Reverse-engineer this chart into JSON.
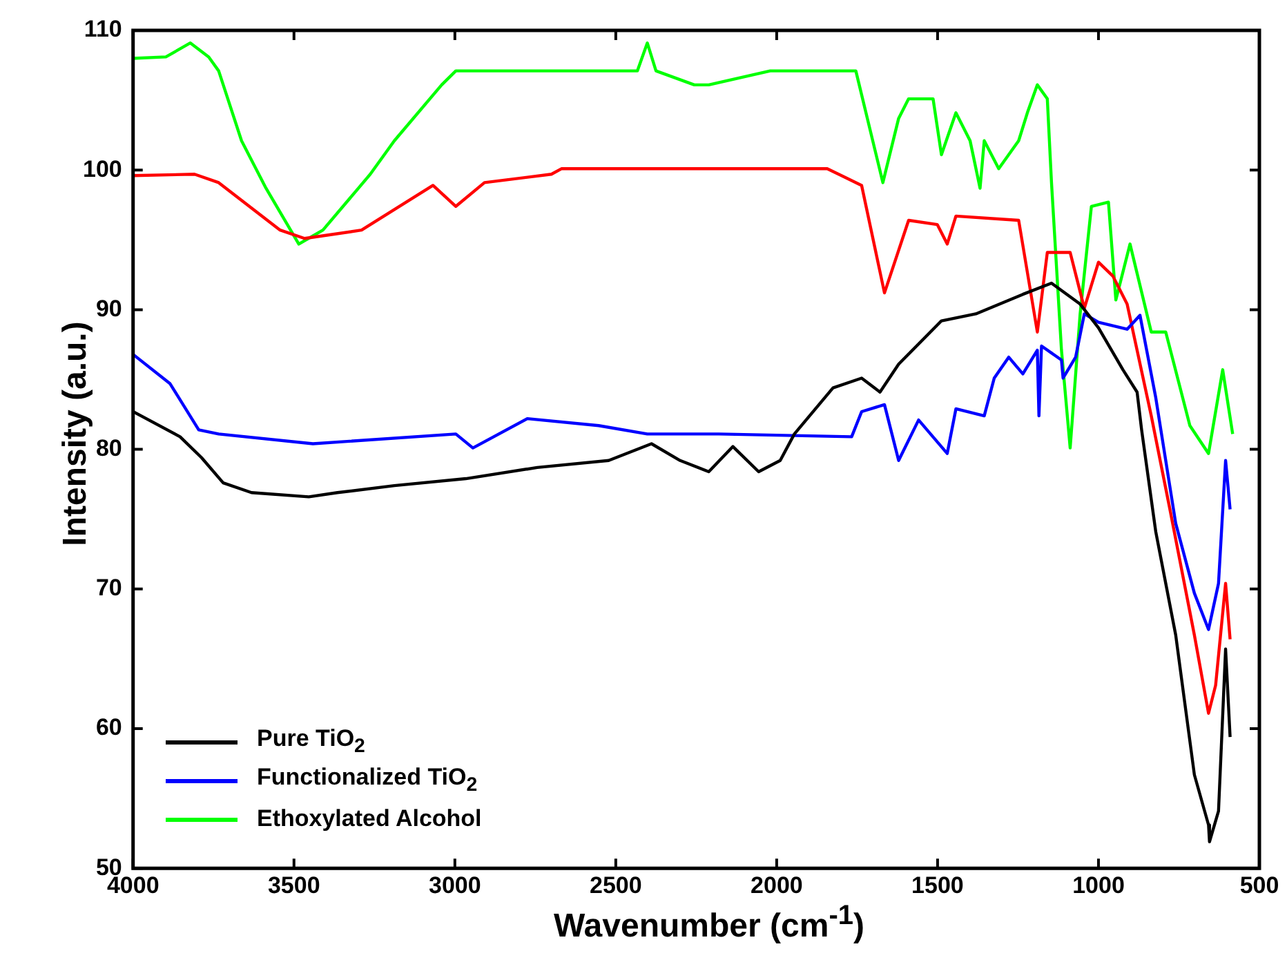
{
  "chart_data": {
    "type": "line",
    "xlabel": "Wavenumber  (cm$^{-1}$)",
    "ylabel": "Intensity (a.u.)",
    "xlim": [
      4000,
      500
    ],
    "xticks": [
      4000,
      3500,
      3000,
      2500,
      2000,
      1500,
      1000,
      500
    ],
    "ylim": [
      50,
      110
    ],
    "yticks": [
      50,
      60,
      70,
      80,
      90,
      100,
      110
    ],
    "grid": false,
    "legend": "bottom left",
    "marker": "none",
    "line_style": "solid",
    "series": [
      {
        "name": "Pure TiO$_{2}$",
        "color": "#000000",
        "x": [
          4000,
          3854,
          3787,
          3720,
          3632,
          3454,
          3365,
          3188,
          2966,
          2744,
          2522,
          2389,
          2300,
          2211,
          2136,
          2056,
          1989,
          1945,
          1825,
          1736,
          1679,
          1621,
          1488,
          1381,
          1235,
          1146,
          1057,
          1000,
          924,
          880,
          866,
          822,
          760,
          702,
          658,
          655,
          627,
          605,
          591
        ],
        "values": [
          82.7,
          80.9,
          79.4,
          77.6,
          76.9,
          76.6,
          76.9,
          77.4,
          77.9,
          78.7,
          79.2,
          80.4,
          79.2,
          78.4,
          80.2,
          78.4,
          79.2,
          81.1,
          84.4,
          85.1,
          84.1,
          86.1,
          89.2,
          89.7,
          91.1,
          91.9,
          90.4,
          88.7,
          85.7,
          84.1,
          81.4,
          74.1,
          66.7,
          56.7,
          53.1,
          51.9,
          54.1,
          65.7,
          59.4
        ]
      },
      {
        "name": "Functionalized TiO$_{2}$",
        "color": "#0000ff",
        "x": [
          4000,
          3885,
          3796,
          3734,
          3441,
          2997,
          2944,
          2775,
          2553,
          2402,
          2180,
          1767,
          1736,
          1665,
          1621,
          1559,
          1470,
          1443,
          1355,
          1324,
          1279,
          1235,
          1190,
          1185,
          1177,
          1115,
          1110,
          1071,
          1044,
          1000,
          911,
          871,
          822,
          760,
          702,
          658,
          627,
          605,
          591
        ],
        "values": [
          86.8,
          84.7,
          81.4,
          81.1,
          80.4,
          81.1,
          80.1,
          82.2,
          81.7,
          81.1,
          81.1,
          80.9,
          82.7,
          83.2,
          79.2,
          82.1,
          79.7,
          82.9,
          82.4,
          85.1,
          86.6,
          85.4,
          87.1,
          82.4,
          87.4,
          86.4,
          85.1,
          86.6,
          89.7,
          89.1,
          88.6,
          89.6,
          83.7,
          74.7,
          69.7,
          67.1,
          70.4,
          79.2,
          75.7
        ]
      },
      {
        "color": "#ff0000",
        "x": [
          4000,
          3809,
          3734,
          3543,
          3467,
          3290,
          3068,
          2997,
          2908,
          2700,
          2668,
          2180,
          1843,
          1736,
          1665,
          1590,
          1501,
          1470,
          1443,
          1248,
          1190,
          1159,
          1088,
          1044,
          1000,
          955,
          911,
          836,
          778,
          702,
          658,
          636,
          605,
          591
        ],
        "values": [
          99.6,
          99.7,
          99.1,
          95.7,
          95.1,
          95.7,
          98.9,
          97.4,
          99.1,
          99.7,
          100.1,
          100.1,
          100.1,
          98.9,
          91.2,
          96.4,
          96.1,
          94.7,
          96.7,
          96.4,
          88.4,
          94.1,
          94.1,
          90.1,
          93.4,
          92.4,
          90.4,
          82.4,
          75.7,
          66.7,
          61.1,
          63.1,
          70.4,
          66.4
        ]
      },
      {
        "name": "Ethoxylated Alcohol",
        "color": "#00ff00",
        "x": [
          4000,
          3898,
          3822,
          3765,
          3734,
          3663,
          3587,
          3485,
          3410,
          3263,
          3188,
          3041,
          2997,
          2433,
          2402,
          2375,
          2256,
          2211,
          2020,
          1754,
          1670,
          1621,
          1590,
          1514,
          1488,
          1443,
          1399,
          1368,
          1355,
          1310,
          1248,
          1221,
          1190,
          1159,
          1146,
          1115,
          1088,
          1057,
          1022,
          969,
          946,
          902,
          836,
          791,
          716,
          658,
          614,
          583
        ],
        "values": [
          108.0,
          108.1,
          109.1,
          108.1,
          107.1,
          102.1,
          98.7,
          94.7,
          95.7,
          99.7,
          102.1,
          106.1,
          107.1,
          107.1,
          109.1,
          107.1,
          106.1,
          106.1,
          107.1,
          107.1,
          99.1,
          103.7,
          105.1,
          105.1,
          101.1,
          104.1,
          102.1,
          98.7,
          102.1,
          100.1,
          102.1,
          104.1,
          106.1,
          105.1,
          99.1,
          87.1,
          80.1,
          89.7,
          97.4,
          97.7,
          90.7,
          94.7,
          88.4,
          88.4,
          81.7,
          79.7,
          85.7,
          81.1
        ]
      }
    ]
  }
}
